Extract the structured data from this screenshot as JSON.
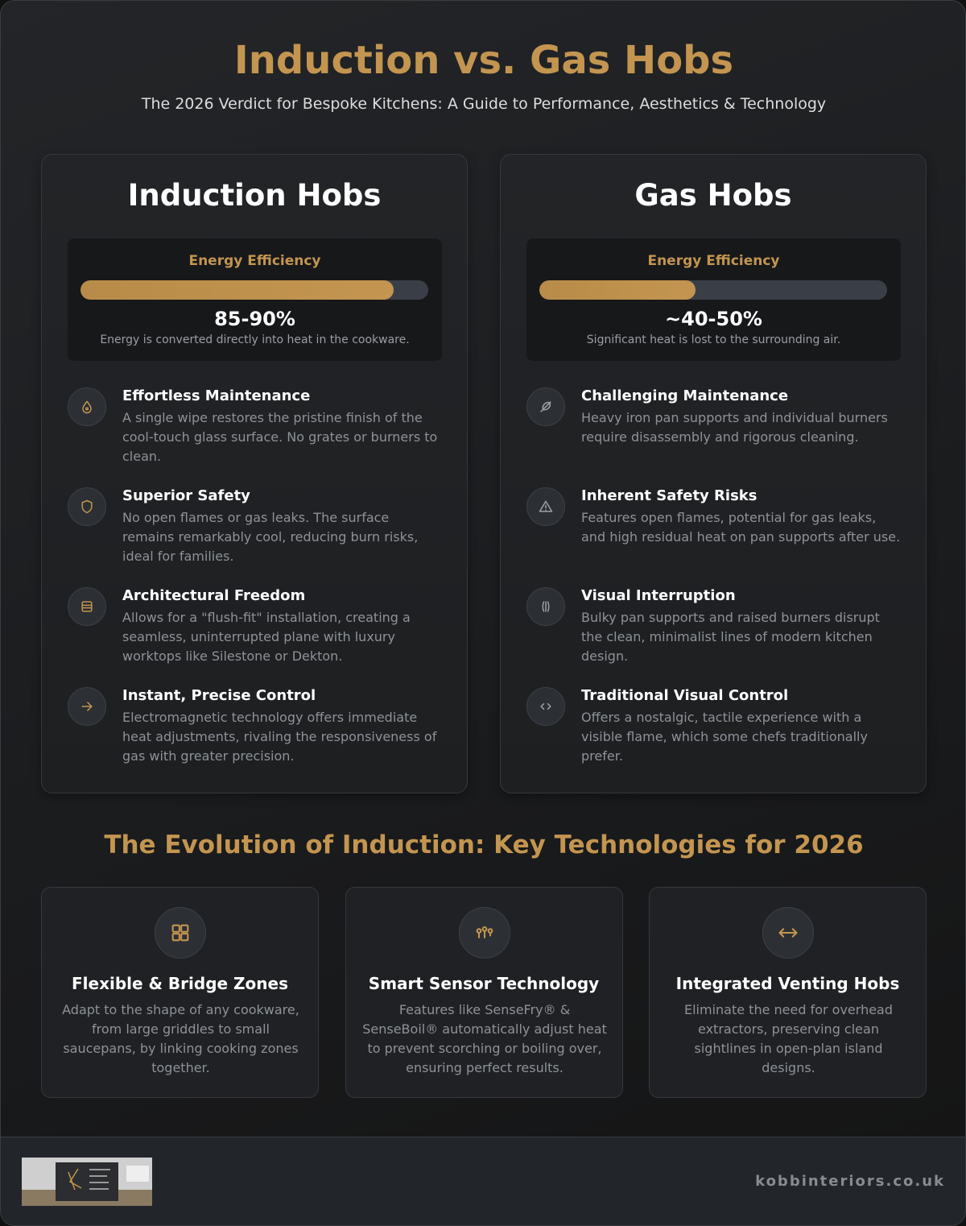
{
  "header": {
    "title": "Induction vs. Gas Hobs",
    "subtitle": "The 2026 Verdict for Bespoke Kitchens: A Guide to Performance, Aesthetics & Technology"
  },
  "comparison": [
    {
      "title": "Induction Hobs",
      "efficiency": {
        "label": "Energy Efficiency",
        "value": 90,
        "value_label": "85-90%",
        "note": "Energy is converted directly into heat in the cookware."
      },
      "features": [
        {
          "title": "Effortless Maintenance",
          "text": "A single wipe restores the pristine finish of the cool-touch glass surface. No grates or burners to clean."
        },
        {
          "title": "Superior Safety",
          "text": "No open flames or gas leaks. The surface remains remarkably cool, reducing burn risks, ideal for families."
        },
        {
          "title": "Architectural Freedom",
          "text": "Allows for a \"flush-fit\" installation, creating a seamless, uninterrupted plane with luxury worktops like Silestone or Dekton."
        },
        {
          "title": "Instant, Precise Control",
          "text": "Electromagnetic technology offers immediate heat adjustments, rivaling the responsiveness of gas with greater precision."
        }
      ]
    },
    {
      "title": "Gas Hobs",
      "efficiency": {
        "label": "Energy Efficiency",
        "value": 45,
        "value_label": "~40-50%",
        "note": "Significant heat is lost to the surrounding air."
      },
      "features": [
        {
          "title": "Challenging Maintenance",
          "text": "Heavy iron pan supports and individual burners require disassembly and rigorous cleaning."
        },
        {
          "title": "Inherent Safety Risks",
          "text": "Features open flames, potential for gas leaks, and high residual heat on pan supports after use."
        },
        {
          "title": "Visual Interruption",
          "text": "Bulky pan supports and raised burners disrupt the clean, minimalist lines of modern kitchen design."
        },
        {
          "title": "Traditional Visual Control",
          "text": "Offers a nostalgic, tactile experience with a visible flame, which some chefs traditionally prefer."
        }
      ]
    }
  ],
  "technologies": {
    "title": "The Evolution of Induction: Key Technologies for 2026",
    "items": [
      {
        "title": "Flexible & Bridge Zones",
        "text": "Adapt to the shape of any cookware, from large griddles to small saucepans, by linking cooking zones together."
      },
      {
        "title": "Smart Sensor Technology",
        "text": "Features like SenseFry® & SenseBoil® automatically adjust heat to prevent scorching or boiling over, ensuring perfect results."
      },
      {
        "title": "Integrated Venting Hobs",
        "text": "Eliminate the need for overhead extractors, preserving clean sightlines in open-plan island designs."
      }
    ]
  },
  "footer": {
    "website": "kobbinteriors.co.uk"
  }
}
